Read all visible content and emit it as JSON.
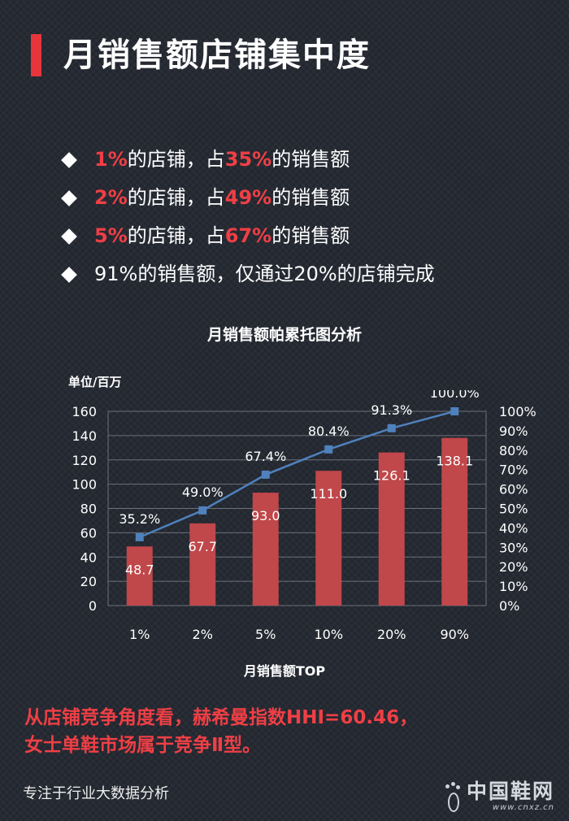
{
  "header": {
    "title": "月销售额店铺集中度"
  },
  "bullets": [
    {
      "p1": "1%",
      "p2": "的店铺，占",
      "p3": "35%",
      "p4": "的销售额"
    },
    {
      "p1": "2%",
      "p2": "的店铺，占",
      "p3": "49%",
      "p4": "的销售额"
    },
    {
      "p1": "5%",
      "p2": "的店铺，占",
      "p3": "67%",
      "p4": "的销售额"
    },
    {
      "text": "91%的销售额，仅通过20%的店铺完成"
    }
  ],
  "conclusion": {
    "line1": "从店铺竞争角度看，赫希曼指数HHI=60.46，",
    "line2": "女士单鞋市场属于竞争Ⅱ型。"
  },
  "footer": {
    "text": "专注于行业大数据分析"
  },
  "logo": {
    "name": "中国鞋网",
    "url": "www.cnxz.cn"
  },
  "colors": {
    "accent": "#e8343b",
    "bar": "#c0474a",
    "line": "#4f81bd",
    "background": "#262a33"
  },
  "chart_data": {
    "type": "bar",
    "title": "月销售额帕累托图分析",
    "xlabel": "月销售额TOP",
    "ylabel": "单位/百万",
    "categories": [
      "1%",
      "2%",
      "5%",
      "10%",
      "20%",
      "90%"
    ],
    "ylim": [
      0,
      160
    ],
    "y_ticks": [
      "0",
      "20",
      "40",
      "60",
      "80",
      "100",
      "120",
      "140",
      "160"
    ],
    "y2lim": [
      0,
      100
    ],
    "y2_ticks": [
      "0%",
      "10%",
      "20%",
      "30%",
      "40%",
      "50%",
      "60%",
      "70%",
      "80%",
      "90%",
      "100%"
    ],
    "grid": true,
    "series": [
      {
        "type": "bar",
        "values": [
          48.7,
          67.7,
          93.0,
          111.0,
          126.1,
          138.1
        ],
        "labels": [
          "48.7",
          "67.7",
          "93.0",
          "111.0",
          "126.1",
          "138.1"
        ]
      },
      {
        "type": "line",
        "axis": "right",
        "values": [
          35.2,
          49.0,
          67.4,
          80.4,
          91.3,
          100.0
        ],
        "labels": [
          "35.2%",
          "49.0%",
          "67.4%",
          "80.4%",
          "91.3%",
          "100.0%"
        ]
      }
    ]
  }
}
